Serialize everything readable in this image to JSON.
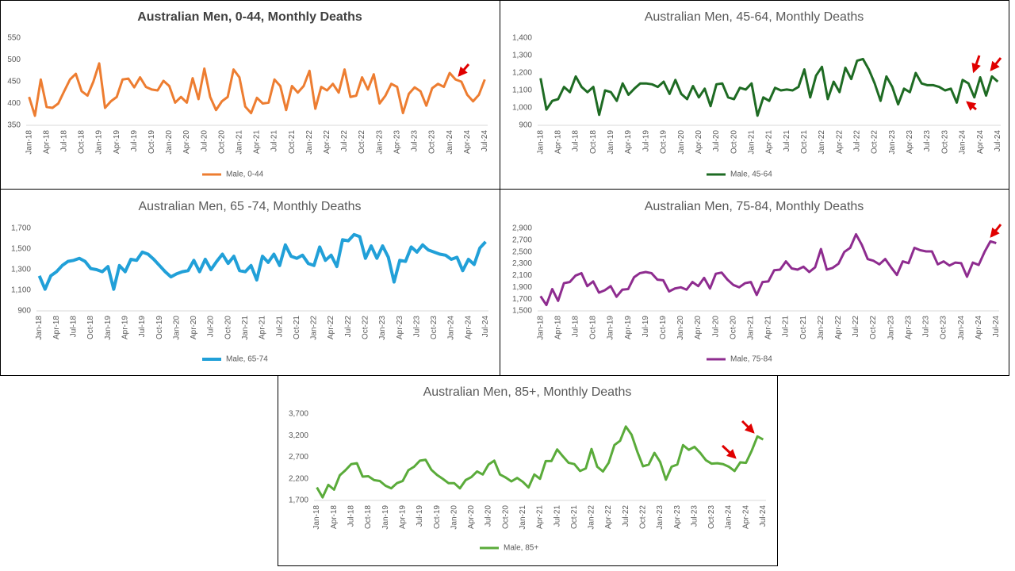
{
  "chart_data": [
    {
      "type": "line",
      "title": "Australian Men, 0-44, Monthly Deaths",
      "categories": [
        "Jan-18",
        null,
        null,
        "Apr-18",
        null,
        null,
        "Jul-18",
        null,
        null,
        "Oct-18",
        null,
        null,
        "Jan-19",
        null,
        null,
        "Apr-19",
        null,
        null,
        "Jul-19",
        null,
        null,
        "Oct-19",
        null,
        null,
        "Jan-20",
        null,
        null,
        "Apr-20",
        null,
        null,
        "Jul-20",
        null,
        null,
        "Oct-20",
        null,
        null,
        "Jan-21",
        null,
        null,
        "Apr-21",
        null,
        null,
        "Jul-21",
        null,
        null,
        "Oct-21",
        null,
        null,
        "Jan-22",
        null,
        null,
        "Apr-22",
        null,
        null,
        "Jul-22",
        null,
        null,
        "Oct-22",
        null,
        null,
        "Jan-23",
        null,
        null,
        "Apr-23",
        null,
        null,
        "Jul-23",
        null,
        null,
        "Oct-23",
        null,
        null,
        "Jan-24",
        null,
        null,
        "Apr-24",
        null,
        null,
        "Jul-24"
      ],
      "series": [
        {
          "name": "Male, 0-44",
          "color": "#ed7d31",
          "values": [
            415,
            372,
            455,
            392,
            390,
            400,
            428,
            455,
            468,
            428,
            418,
            450,
            492,
            390,
            405,
            415,
            455,
            457,
            437,
            460,
            438,
            432,
            430,
            452,
            440,
            402,
            415,
            402,
            458,
            410,
            480,
            415,
            385,
            405,
            415,
            478,
            460,
            393,
            378,
            413,
            400,
            402,
            455,
            440,
            385,
            440,
            425,
            440,
            475,
            388,
            438,
            430,
            445,
            425,
            478,
            415,
            418,
            460,
            432,
            467,
            400,
            418,
            445,
            438,
            378,
            422,
            437,
            428,
            395,
            435,
            445,
            438,
            470,
            455,
            450,
            420,
            405,
            420,
            455
          ]
        }
      ],
      "ylim": [
        350,
        550
      ],
      "yticks": [
        350,
        400,
        450,
        500,
        550
      ]
    },
    {
      "type": "line",
      "title": "Australian Men, 45-64, Monthly Deaths",
      "categories": [
        "Jan-18",
        null,
        null,
        "Apr-18",
        null,
        null,
        "Jul-18",
        null,
        null,
        "Oct-18",
        null,
        null,
        "Jan-19",
        null,
        null,
        "Apr-19",
        null,
        null,
        "Jul-19",
        null,
        null,
        "Oct-19",
        null,
        null,
        "Jan-20",
        null,
        null,
        "Apr-20",
        null,
        null,
        "Jul-20",
        null,
        null,
        "Oct-20",
        null,
        null,
        "Jan-21",
        null,
        null,
        "Apr-21",
        null,
        null,
        "Jul-21",
        null,
        null,
        "Oct-21",
        null,
        null,
        "Jan-22",
        null,
        null,
        "Apr-22",
        null,
        null,
        "Jul-22",
        null,
        null,
        "Oct-22",
        null,
        null,
        "Jan-23",
        null,
        null,
        "Apr-23",
        null,
        null,
        "Jul-23",
        null,
        null,
        "Oct-23",
        null,
        null,
        "Jan-24",
        null,
        null,
        "Apr-24",
        null,
        null,
        "Jul-24"
      ],
      "series": [
        {
          "name": "Male, 45-64",
          "color": "#1e6b23",
          "values": [
            1170,
            990,
            1040,
            1050,
            1120,
            1090,
            1180,
            1120,
            1090,
            1120,
            960,
            1100,
            1090,
            1040,
            1140,
            1075,
            1110,
            1140,
            1140,
            1135,
            1120,
            1150,
            1080,
            1160,
            1080,
            1050,
            1125,
            1060,
            1110,
            1010,
            1135,
            1140,
            1060,
            1050,
            1115,
            1105,
            1140,
            955,
            1060,
            1040,
            1115,
            1100,
            1105,
            1100,
            1120,
            1220,
            1060,
            1185,
            1235,
            1050,
            1150,
            1090,
            1230,
            1165,
            1270,
            1280,
            1220,
            1140,
            1040,
            1180,
            1120,
            1020,
            1110,
            1090,
            1200,
            1140,
            1130,
            1130,
            1120,
            1100,
            1110,
            1030,
            1160,
            1140,
            1060,
            1175,
            1070,
            1180,
            1150
          ]
        }
      ],
      "ylim": [
        900,
        1400
      ],
      "yticks": [
        900,
        {
          "value": 1000,
          "label": "1,000"
        },
        {
          "value": 1100,
          "label": "1,100"
        },
        {
          "value": 1200,
          "label": "1,200"
        },
        {
          "value": 1300,
          "label": "1,300"
        },
        {
          "value": 1400,
          "label": "1,400"
        }
      ]
    },
    {
      "type": "line",
      "title": "Australian Men, 65 -74, Monthly Deaths",
      "categories": [
        "Jan-18",
        null,
        null,
        "Apr-18",
        null,
        null,
        "Jul-18",
        null,
        null,
        "Oct-18",
        null,
        null,
        "Jan-19",
        null,
        null,
        "Apr-19",
        null,
        null,
        "Jul-19",
        null,
        null,
        "Oct-19",
        null,
        null,
        "Jan-20",
        null,
        null,
        "Apr-20",
        null,
        null,
        "Jul-20",
        null,
        null,
        "Oct-20",
        null,
        null,
        "Jan-21",
        null,
        null,
        "Apr-21",
        null,
        null,
        "Jul-21",
        null,
        null,
        "Oct-21",
        null,
        null,
        "Jan-22",
        null,
        null,
        "Apr-22",
        null,
        null,
        "Jul-22",
        null,
        null,
        "Oct-22",
        null,
        null,
        "Jan-23",
        null,
        null,
        "Apr-23",
        null,
        null,
        "Jul-23",
        null,
        null,
        "Oct-23",
        null,
        null,
        "Jan-24",
        null,
        null,
        "Apr-24",
        null,
        null,
        "Jul-24"
      ],
      "series": [
        {
          "name": "Male, 65-74",
          "color": "#21a0d8",
          "values": [
            1240,
            1110,
            1240,
            1280,
            1340,
            1380,
            1390,
            1410,
            1380,
            1310,
            1300,
            1280,
            1330,
            1110,
            1340,
            1280,
            1400,
            1390,
            1470,
            1450,
            1400,
            1340,
            1280,
            1230,
            1260,
            1280,
            1290,
            1390,
            1280,
            1400,
            1300,
            1380,
            1450,
            1360,
            1430,
            1290,
            1280,
            1340,
            1200,
            1430,
            1370,
            1450,
            1340,
            1540,
            1430,
            1410,
            1440,
            1360,
            1340,
            1520,
            1390,
            1440,
            1330,
            1590,
            1580,
            1640,
            1620,
            1410,
            1530,
            1410,
            1530,
            1420,
            1180,
            1390,
            1380,
            1520,
            1470,
            1540,
            1490,
            1470,
            1450,
            1440,
            1400,
            1420,
            1290,
            1400,
            1350,
            1510,
            1570
          ]
        }
      ],
      "ylim": [
        900,
        1700
      ],
      "yticks": [
        900,
        {
          "value": 1100,
          "label": "1,100"
        },
        {
          "value": 1300,
          "label": "1,300"
        },
        {
          "value": 1500,
          "label": "1,500"
        },
        {
          "value": 1700,
          "label": "1,700"
        }
      ]
    },
    {
      "type": "line",
      "title": "Australian Men, 75-84, Monthly Deaths",
      "categories": [
        "Jan-18",
        null,
        null,
        "Apr-18",
        null,
        null,
        "Jul-18",
        null,
        null,
        "Oct-18",
        null,
        null,
        "Jan-19",
        null,
        null,
        "Apr-19",
        null,
        null,
        "Jul-19",
        null,
        null,
        "Oct-19",
        null,
        null,
        "Jan-20",
        null,
        null,
        "Apr-20",
        null,
        null,
        "Jul-20",
        null,
        null,
        "Oct-20",
        null,
        null,
        "Jan-21",
        null,
        null,
        "Apr-21",
        null,
        null,
        "Jul-21",
        null,
        null,
        "Oct-21",
        null,
        null,
        "Jan-22",
        null,
        null,
        "Apr-22",
        null,
        null,
        "Jul-22",
        null,
        null,
        "Oct-22",
        null,
        null,
        "Jan-23",
        null,
        null,
        "Apr-23",
        null,
        null,
        "Jul-23",
        null,
        null,
        "Oct-23",
        null,
        null,
        "Jan-24",
        null,
        null,
        "Apr-24",
        null,
        null,
        "Jul-24"
      ],
      "series": [
        {
          "name": "Male, 75-84",
          "color": "#8e2c8f",
          "values": [
            1750,
            1600,
            1870,
            1670,
            1970,
            1990,
            2100,
            2140,
            1920,
            2000,
            1810,
            1850,
            1920,
            1740,
            1860,
            1870,
            2070,
            2140,
            2160,
            2140,
            2030,
            2020,
            1830,
            1880,
            1900,
            1860,
            1990,
            1920,
            2060,
            1880,
            2130,
            2150,
            2030,
            1940,
            1900,
            1970,
            1990,
            1770,
            1990,
            2000,
            2190,
            2200,
            2340,
            2220,
            2200,
            2250,
            2160,
            2240,
            2550,
            2200,
            2230,
            2300,
            2500,
            2570,
            2800,
            2620,
            2380,
            2350,
            2290,
            2380,
            2240,
            2110,
            2340,
            2310,
            2570,
            2530,
            2510,
            2510,
            2290,
            2340,
            2270,
            2320,
            2310,
            2080,
            2320,
            2280,
            2500,
            2680,
            2650
          ]
        }
      ],
      "ylim": [
        1500,
        2900
      ],
      "yticks": [
        {
          "value": 1500,
          "label": "1,500"
        },
        {
          "value": 1700,
          "label": "1,700"
        },
        {
          "value": 1900,
          "label": "1,900"
        },
        {
          "value": 2100,
          "label": "2,100"
        },
        {
          "value": 2300,
          "label": "2,300"
        },
        {
          "value": 2500,
          "label": "2,500"
        },
        {
          "value": 2700,
          "label": "2,700"
        },
        {
          "value": 2900,
          "label": "2,900"
        }
      ]
    },
    {
      "type": "line",
      "title": "Australian Men, 85+, Monthly Deaths",
      "categories": [
        "Jan-18",
        null,
        null,
        "Apr-18",
        null,
        null,
        "Jul-18",
        null,
        null,
        "Oct-18",
        null,
        null,
        "Jan-19",
        null,
        null,
        "Apr-19",
        null,
        null,
        "Jul-19",
        null,
        null,
        "Oct-19",
        null,
        null,
        "Jan-20",
        null,
        null,
        "Apr-20",
        null,
        null,
        "Jul-20",
        null,
        null,
        "Oct-20",
        null,
        null,
        "Jan-21",
        null,
        null,
        "Apr-21",
        null,
        null,
        "Jul-21",
        null,
        null,
        "Oct-21",
        null,
        null,
        "Jan-22",
        null,
        null,
        "Apr-22",
        null,
        null,
        "Jul-22",
        null,
        null,
        "Oct-22",
        null,
        null,
        "Jan-23",
        null,
        null,
        "Apr-23",
        null,
        null,
        "Jul-23",
        null,
        null,
        "Oct-23",
        null,
        null,
        "Jan-24",
        null,
        null,
        "Apr-24",
        null,
        null,
        "Jul-24"
      ],
      "series": [
        {
          "name": "Male, 85+",
          "color": "#5aab3a",
          "values": [
            2000,
            1770,
            2060,
            1950,
            2280,
            2400,
            2540,
            2560,
            2250,
            2260,
            2170,
            2150,
            2040,
            1980,
            2100,
            2150,
            2400,
            2480,
            2620,
            2640,
            2410,
            2290,
            2200,
            2100,
            2100,
            1980,
            2170,
            2240,
            2370,
            2300,
            2530,
            2620,
            2300,
            2230,
            2140,
            2220,
            2130,
            2000,
            2300,
            2200,
            2610,
            2610,
            2880,
            2720,
            2570,
            2540,
            2380,
            2440,
            2890,
            2480,
            2370,
            2570,
            2980,
            3080,
            3410,
            3220,
            2830,
            2490,
            2530,
            2800,
            2590,
            2180,
            2480,
            2530,
            2980,
            2870,
            2940,
            2800,
            2630,
            2550,
            2560,
            2540,
            2480,
            2380,
            2580,
            2570,
            2850,
            3180,
            3110
          ]
        }
      ],
      "ylim": [
        1700,
        3700
      ],
      "yticks": [
        {
          "value": 1700,
          "label": "1,700"
        },
        {
          "value": 2200,
          "label": "2,200"
        },
        {
          "value": 2700,
          "label": "2,700"
        },
        {
          "value": 3200,
          "label": "3,200"
        },
        {
          "value": 3700,
          "label": "3,700"
        }
      ]
    }
  ]
}
